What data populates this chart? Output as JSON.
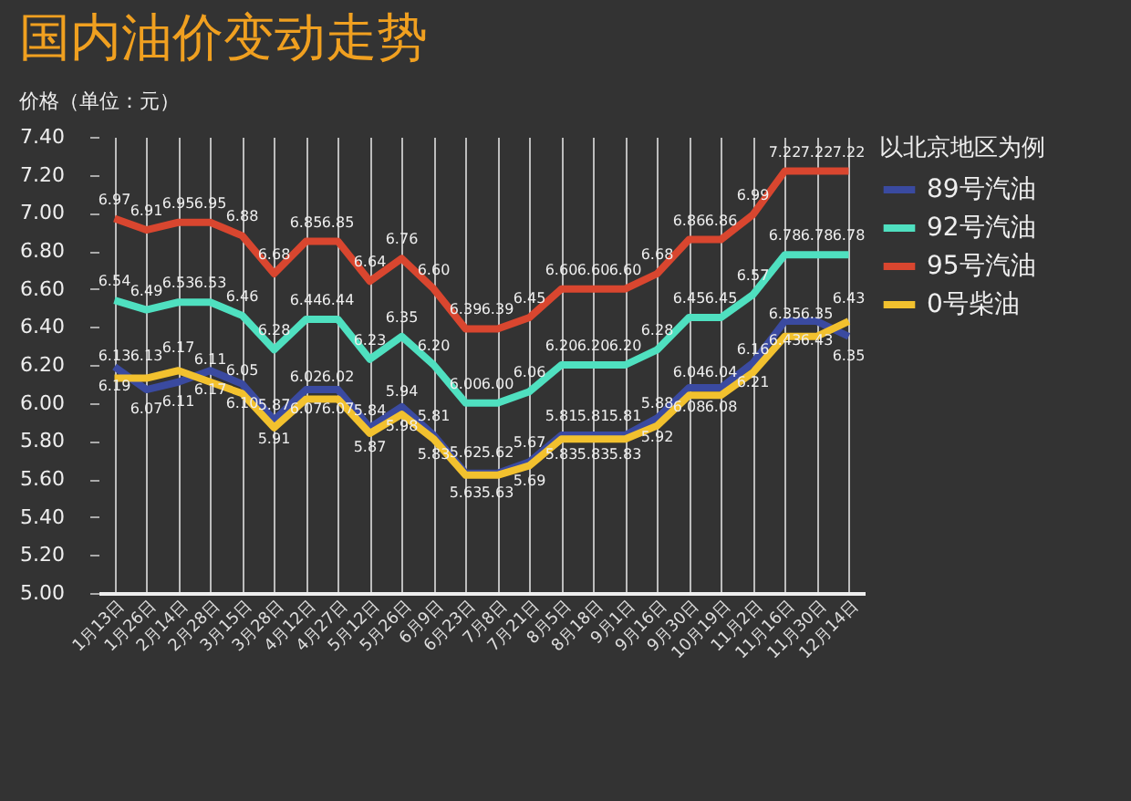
{
  "chart_data": {
    "type": "line",
    "title": "国内油价变动走势",
    "ylabel": "价格（单位：元）",
    "legend_title": "以北京地区为例",
    "categories": [
      "1月13日",
      "1月26日",
      "2月14日",
      "2月28日",
      "3月15日",
      "3月28日",
      "4月12日",
      "4月27日",
      "5月12日",
      "5月26日",
      "6月9日",
      "6月23日",
      "7月8日",
      "7月21日",
      "8月5日",
      "8月18日",
      "9月1日",
      "9月16日",
      "9月30日",
      "10月19日",
      "11月2日",
      "11月16日",
      "11月30日",
      "12月14日"
    ],
    "series": [
      {
        "name": "89号汽油",
        "color": "#3a4aa0",
        "values": [
          6.19,
          6.07,
          6.11,
          6.17,
          6.1,
          5.91,
          6.07,
          6.07,
          5.87,
          5.98,
          5.83,
          5.63,
          5.63,
          5.69,
          5.83,
          5.83,
          5.83,
          5.92,
          6.08,
          6.08,
          6.21,
          6.43,
          6.43,
          6.35
        ],
        "value_labels": [
          "6.19",
          "6.07",
          "6.11",
          "6.17",
          "6.10",
          "5.91",
          "6.07",
          "6.07",
          "5.87",
          "5.98",
          "5.83",
          "5.63",
          "5.63",
          "5.69",
          "5.83",
          "5.83",
          "5.83",
          "5.92",
          "6.08",
          "6.08",
          "6.21",
          "6.43",
          "6.43",
          "6.35"
        ]
      },
      {
        "name": "92号汽油",
        "color": "#4fe0c0",
        "values": [
          6.54,
          6.49,
          6.53,
          6.53,
          6.46,
          6.28,
          6.44,
          6.44,
          6.23,
          6.35,
          6.2,
          6.0,
          6.0,
          6.06,
          6.2,
          6.2,
          6.2,
          6.28,
          6.45,
          6.45,
          6.57,
          6.78,
          6.78,
          6.78
        ],
        "value_labels": [
          "6.54",
          "6.49",
          "6.53",
          "6.53",
          "6.46",
          "6.28",
          "6.44",
          "6.44",
          "6.23",
          "6.35",
          "6.20",
          "6.00",
          "6.00",
          "6.06",
          "6.20",
          "6.20",
          "6.20",
          "6.28",
          "6.45",
          "6.45",
          "6.57",
          "6.78",
          "6.78",
          "6.78"
        ]
      },
      {
        "name": "95号汽油",
        "color": "#d9462f",
        "values": [
          6.97,
          6.91,
          6.95,
          6.95,
          6.88,
          6.68,
          6.85,
          6.85,
          6.64,
          6.76,
          6.6,
          6.39,
          6.39,
          6.45,
          6.6,
          6.6,
          6.6,
          6.68,
          6.86,
          6.86,
          6.99,
          7.22,
          7.22,
          7.22
        ],
        "value_labels": [
          "6.97",
          "6.91",
          "6.95",
          "6.95",
          "6.88",
          "6.68",
          "6.85",
          "6.85",
          "6.64",
          "6.76",
          "6.60",
          "6.39",
          "6.39",
          "6.45",
          "6.60",
          "6.60",
          "6.60",
          "6.68",
          "6.86",
          "6.86",
          "6.99",
          "7.22",
          "7.22",
          "7.22"
        ]
      },
      {
        "name": "0号柴油",
        "color": "#f2c12e",
        "values": [
          6.13,
          6.13,
          6.17,
          6.11,
          6.05,
          5.87,
          6.02,
          6.02,
          5.84,
          5.94,
          5.81,
          5.62,
          5.62,
          5.67,
          5.81,
          5.81,
          5.81,
          5.88,
          6.04,
          6.04,
          6.16,
          6.35,
          6.35,
          6.43
        ],
        "value_labels": [
          "6.13",
          "6.13",
          "6.17",
          "6.11",
          "6.05",
          "5.87",
          "6.02",
          "6.02",
          "5.84",
          "5.94",
          "5.81",
          "5.62",
          "5.62",
          "5.67",
          "5.81",
          "5.81",
          "5.81",
          "5.88",
          "6.04",
          "6.04",
          "6.16",
          "6.35",
          "6.35",
          "6.43"
        ]
      }
    ],
    "ylim": [
      5.0,
      7.4
    ],
    "yticks": [
      {
        "value": 5.0,
        "label": "5.00"
      },
      {
        "value": 5.2,
        "label": "5.20"
      },
      {
        "value": 5.4,
        "label": "5.40"
      },
      {
        "value": 5.6,
        "label": "5.60"
      },
      {
        "value": 5.8,
        "label": "5.80"
      },
      {
        "value": 6.0,
        "label": "6.00"
      },
      {
        "value": 6.2,
        "label": "6.20"
      },
      {
        "value": 6.4,
        "label": "6.40"
      },
      {
        "value": 6.6,
        "label": "6.60"
      },
      {
        "value": 6.8,
        "label": "6.80"
      },
      {
        "value": 7.0,
        "label": "7.00"
      },
      {
        "value": 7.2,
        "label": "7.20"
      },
      {
        "value": 7.4,
        "label": "7.40"
      }
    ],
    "grid": "x",
    "legend": "right",
    "marker": "none",
    "line_style": "solid"
  }
}
